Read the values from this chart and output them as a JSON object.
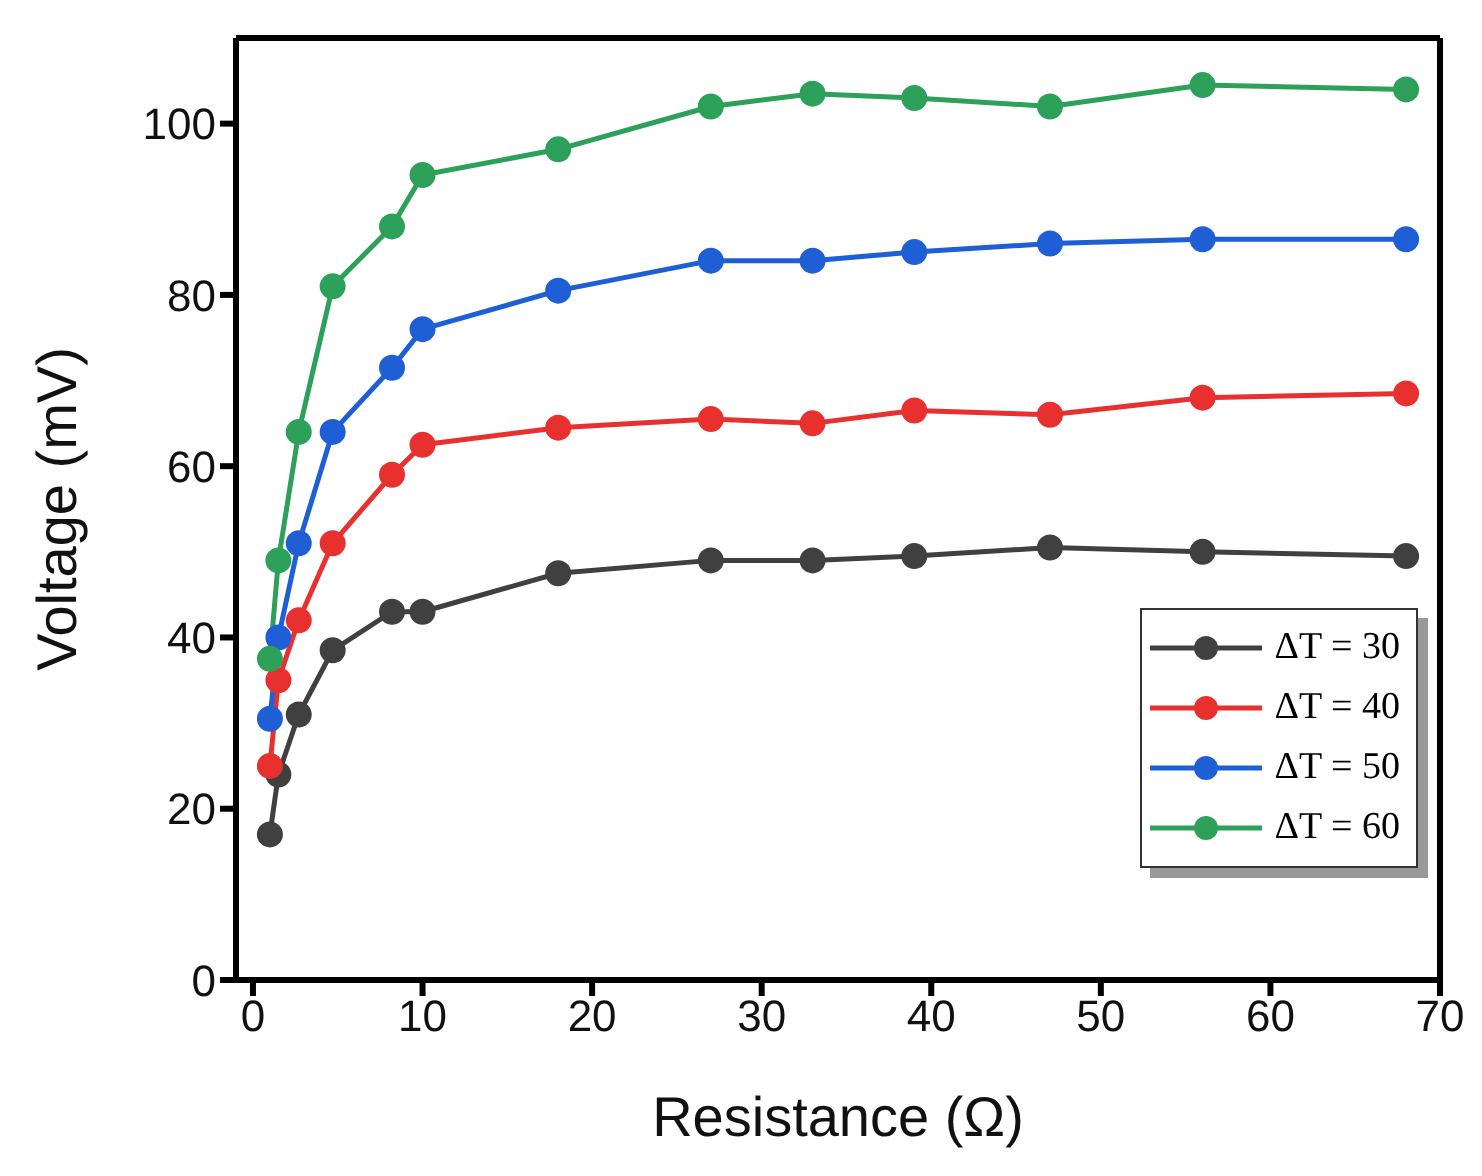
{
  "chart_data": {
    "type": "line",
    "xlabel": "Resistance (Ω)",
    "ylabel": "Voltage (mV)",
    "x": [
      1,
      1.5,
      2.7,
      4.7,
      8.2,
      10,
      18,
      27,
      33,
      39,
      47,
      56,
      68
    ],
    "xlim": [
      -1,
      70
    ],
    "xticks": [
      0,
      10,
      20,
      30,
      40,
      50,
      60,
      70
    ],
    "ylim": [
      0,
      110
    ],
    "yticks": [
      0,
      20,
      40,
      60,
      80,
      100
    ],
    "grid": false,
    "legend": "bottom right",
    "marker": "circle",
    "line_style": "solid",
    "series": [
      {
        "name": "ΔT = 30",
        "color": "#404040",
        "values": [
          17,
          24,
          31,
          38.5,
          43,
          43,
          47.5,
          49,
          49,
          49.5,
          50.5,
          50,
          49.5
        ]
      },
      {
        "name": "ΔT = 40",
        "color": "#e8312f",
        "values": [
          25,
          35,
          42,
          51,
          59,
          62.5,
          64.5,
          65.5,
          65,
          66.5,
          66,
          68,
          68.5
        ]
      },
      {
        "name": "ΔT = 50",
        "color": "#1f5fd6",
        "values": [
          30.5,
          40,
          51,
          64,
          71.5,
          76,
          80.5,
          84,
          84,
          85,
          86,
          86.5,
          86.5
        ]
      },
      {
        "name": "ΔT = 60",
        "color": "#2da05a",
        "values": [
          37.5,
          49,
          64,
          81,
          88,
          94,
          97,
          102,
          103.5,
          103,
          102,
          104.5,
          104
        ]
      }
    ]
  }
}
